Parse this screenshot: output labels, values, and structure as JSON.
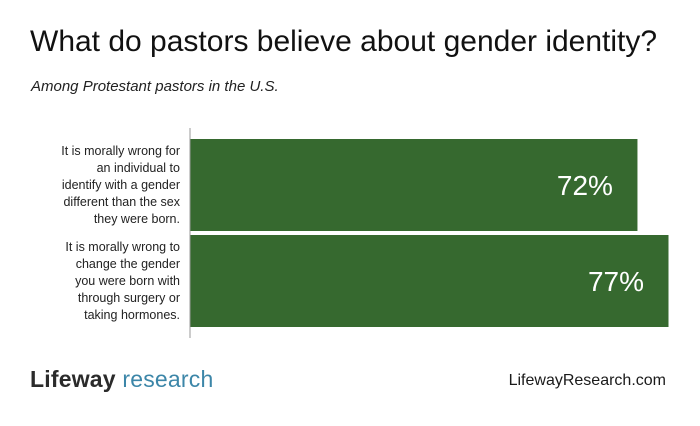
{
  "chart_data": {
    "type": "bar",
    "orientation": "horizontal",
    "title": "What do pastors believe about gender identity?",
    "subtitle": "Among Protestant pastors in the U.S.",
    "categories": [
      [
        "It is morally wrong for",
        "an individual to",
        "identify with a gender",
        "different than the sex",
        "they were born."
      ],
      [
        "It is morally wrong to",
        "change the gender",
        "you were born with",
        "through surgery or",
        "taking hormones."
      ]
    ],
    "values": [
      72,
      77
    ],
    "value_labels": [
      "72%",
      "77%"
    ],
    "xlim": [
      0,
      100
    ],
    "bar_color": "#36692f",
    "grid": false
  },
  "footer": {
    "logo_part1": "Lifeway",
    "logo_part2": "research",
    "url": "LifewayResearch.com"
  },
  "colors": {
    "logo_accent": "#3c86a8",
    "bar": "#36692f"
  }
}
